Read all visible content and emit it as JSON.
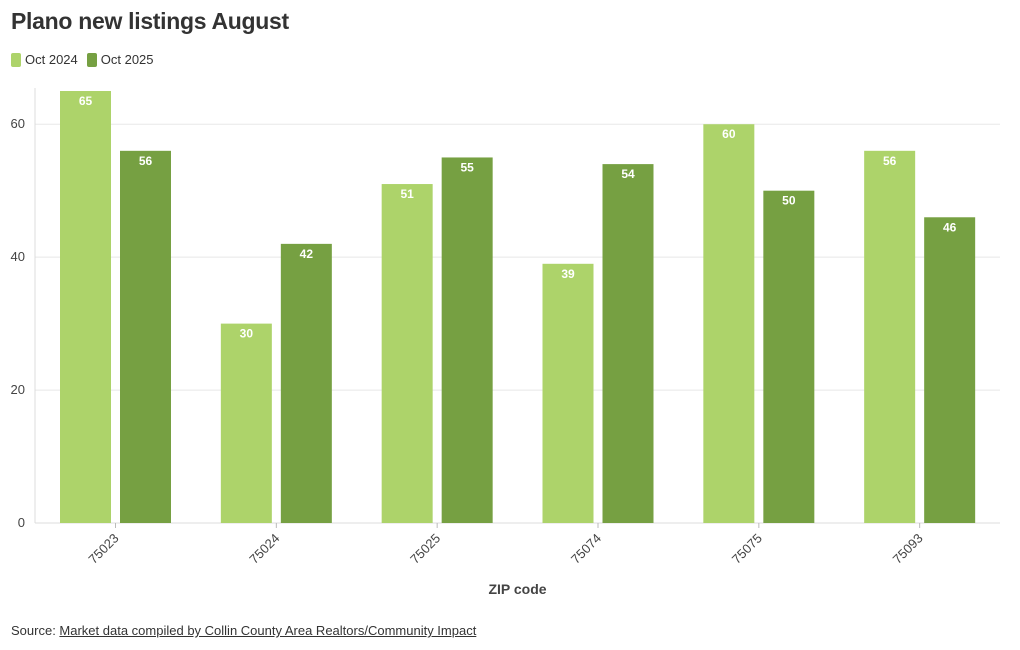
{
  "title": "Plano new listings August",
  "legend": [
    {
      "label": "Oct 2024",
      "color": "#add36a"
    },
    {
      "label": "Oct 2025",
      "color": "#76a042"
    }
  ],
  "footer": {
    "prefix": "Source: ",
    "link_text": "Market data compiled by Collin County Area Realtors/Community Impact"
  },
  "chart_data": {
    "type": "bar",
    "categories": [
      "75023",
      "75024",
      "75025",
      "75074",
      "75075",
      "75093"
    ],
    "series": [
      {
        "name": "Oct 2024",
        "color": "#add36a",
        "values": [
          65,
          30,
          51,
          39,
          60,
          56
        ]
      },
      {
        "name": "Oct 2025",
        "color": "#76a042",
        "values": [
          56,
          42,
          55,
          54,
          50,
          46
        ]
      }
    ],
    "xlabel": "ZIP code",
    "ylabel": "",
    "ylim": [
      0,
      65
    ],
    "yticks": [
      0,
      20,
      40,
      60
    ],
    "grid": true,
    "legend_position": "top-left"
  }
}
